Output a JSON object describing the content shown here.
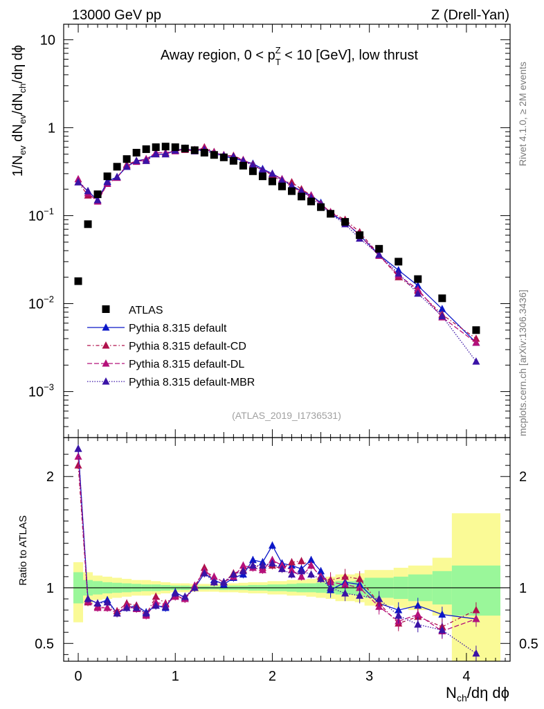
{
  "header": {
    "left": "13000 GeV pp",
    "right": "Z (Drell-Yan)"
  },
  "annotation": {
    "prefix": "Away region, 0 < p",
    "sup": "Z",
    "sub": "T",
    "suffix": " < 10 [GeV], low thrust"
  },
  "side_labels": {
    "rivet": "Rivet 4.1.0, ≥ 2M events",
    "mcplots": "mcplots.cern.ch [arXiv:1306.3436]"
  },
  "analysis_id": "(ATLAS_2019_I1736531)",
  "top_ylabel": {
    "p1": "1/N",
    "s1": "ev",
    "p2": " dN",
    "s2": "ev",
    "p3": "/dN",
    "s3": "ch",
    "p4": "/dη dϕ"
  },
  "bottom_ylabel": "Ratio to ATLAS",
  "xlabel": {
    "p1": "N",
    "s1": "ch",
    "p2": "/dη dϕ"
  },
  "colors": {
    "data": "#000000",
    "default": "#0b17c8",
    "cd": "#b0114c",
    "dl": "#b5107a",
    "mbr": "#3a13a6",
    "band_green": "#9af79a",
    "band_yellow": "#fafa96"
  },
  "chart_data": {
    "type": "scatter",
    "x": [
      0.0,
      0.1,
      0.2,
      0.3,
      0.4,
      0.5,
      0.6,
      0.7,
      0.8,
      0.9,
      1.0,
      1.1,
      1.2,
      1.3,
      1.4,
      1.5,
      1.6,
      1.7,
      1.8,
      1.9,
      2.0,
      2.1,
      2.2,
      2.3,
      2.4,
      2.5,
      2.6,
      2.75,
      2.9,
      3.1,
      3.3,
      3.5,
      3.75,
      4.1
    ],
    "xlim": [
      -0.15,
      4.45
    ],
    "xticks": [
      0,
      1,
      2,
      3,
      4
    ],
    "top": {
      "ylim": [
        0.0003,
        15
      ],
      "yscale": "log",
      "yticks": [
        {
          "v": 10,
          "base": "10",
          "exp": ""
        },
        {
          "v": 1,
          "base": "1",
          "exp": ""
        },
        {
          "v": 0.1,
          "base": "10",
          "exp": "−1"
        },
        {
          "v": 0.01,
          "base": "10",
          "exp": "−2"
        },
        {
          "v": 0.001,
          "base": "10",
          "exp": "−3"
        }
      ],
      "data": [
        0.018,
        0.08,
        0.175,
        0.28,
        0.36,
        0.44,
        0.52,
        0.57,
        0.6,
        0.61,
        0.6,
        0.58,
        0.555,
        0.52,
        0.49,
        0.46,
        0.42,
        0.37,
        0.32,
        0.28,
        0.245,
        0.215,
        0.19,
        0.165,
        0.145,
        0.125,
        0.105,
        0.085,
        0.06,
        0.042,
        0.03,
        0.019,
        0.0115,
        0.005
      ],
      "series": [
        {
          "name": "Pythia 8.315 default",
          "key": "default",
          "dash": "",
          "marker": "triangle",
          "values": [
            0.24,
            0.19,
            0.15,
            0.245,
            0.275,
            0.36,
            0.42,
            0.44,
            0.5,
            0.5,
            0.55,
            0.58,
            0.55,
            0.565,
            0.53,
            0.47,
            0.45,
            0.42,
            0.39,
            0.34,
            0.3,
            0.26,
            0.22,
            0.19,
            0.17,
            0.14,
            0.105,
            0.085,
            0.06,
            0.036,
            0.024,
            0.016,
            0.0087,
            0.0036
          ]
        },
        {
          "name": "Pythia 8.315 default-CD",
          "key": "cd",
          "dash": "5 3 1.5 3",
          "marker": "triangle",
          "values": [
            0.24,
            0.17,
            0.15,
            0.23,
            0.27,
            0.38,
            0.42,
            0.42,
            0.5,
            0.5,
            0.56,
            0.56,
            0.54,
            0.6,
            0.53,
            0.48,
            0.48,
            0.43,
            0.38,
            0.33,
            0.29,
            0.24,
            0.24,
            0.2,
            0.17,
            0.135,
            0.11,
            0.09,
            0.065,
            0.036,
            0.02,
            0.014,
            0.0075,
            0.004
          ]
        },
        {
          "name": "Pythia 8.315 default-DL",
          "key": "dl",
          "dash": "7 3",
          "marker": "triangle",
          "values": [
            0.26,
            0.18,
            0.145,
            0.23,
            0.27,
            0.37,
            0.41,
            0.44,
            0.52,
            0.52,
            0.54,
            0.57,
            0.56,
            0.58,
            0.52,
            0.49,
            0.46,
            0.43,
            0.37,
            0.33,
            0.3,
            0.26,
            0.22,
            0.18,
            0.17,
            0.135,
            0.11,
            0.085,
            0.06,
            0.035,
            0.021,
            0.0145,
            0.007,
            0.0036
          ]
        },
        {
          "name": "Pythia 8.315 default-MBR",
          "key": "mbr",
          "dash": "1.5 2",
          "marker": "triangle",
          "values": [
            0.24,
            0.19,
            0.15,
            0.24,
            0.275,
            0.36,
            0.42,
            0.42,
            0.5,
            0.5,
            0.55,
            0.58,
            0.54,
            0.56,
            0.5,
            0.48,
            0.47,
            0.42,
            0.37,
            0.33,
            0.3,
            0.25,
            0.22,
            0.19,
            0.16,
            0.13,
            0.105,
            0.08,
            0.055,
            0.036,
            0.022,
            0.013,
            0.0072,
            0.0022
          ]
        }
      ],
      "legend": {
        "data_label": "ATLAS",
        "position": "bottom-left"
      }
    },
    "ratio": {
      "ylim": [
        0.34,
        2.35
      ],
      "yticks": [
        0.5,
        1,
        2
      ],
      "band_edges": [
        -0.05,
        0.05,
        0.15,
        0.25,
        0.35,
        0.45,
        0.55,
        0.65,
        0.75,
        0.85,
        0.95,
        1.05,
        1.15,
        1.25,
        1.35,
        1.45,
        1.55,
        1.65,
        1.75,
        1.85,
        1.95,
        2.05,
        2.15,
        2.25,
        2.35,
        2.45,
        2.55,
        2.65,
        2.85,
        2.95,
        3.25,
        3.4,
        3.65,
        3.85,
        4.35
      ],
      "band_green": [
        [
          0.86,
          1.14
        ],
        [
          0.93,
          1.07
        ],
        [
          0.94,
          1.06
        ],
        [
          0.95,
          1.05
        ],
        [
          0.955,
          1.045
        ],
        [
          0.96,
          1.04
        ],
        [
          0.965,
          1.035
        ],
        [
          0.97,
          1.03
        ],
        [
          0.97,
          1.03
        ],
        [
          0.975,
          1.025
        ],
        [
          0.98,
          1.02
        ],
        [
          0.98,
          1.02
        ],
        [
          0.985,
          1.015
        ],
        [
          0.985,
          1.015
        ],
        [
          0.985,
          1.015
        ],
        [
          0.98,
          1.02
        ],
        [
          0.98,
          1.02
        ],
        [
          0.98,
          1.02
        ],
        [
          0.975,
          1.025
        ],
        [
          0.975,
          1.025
        ],
        [
          0.97,
          1.03
        ],
        [
          0.97,
          1.03
        ],
        [
          0.965,
          1.035
        ],
        [
          0.96,
          1.04
        ],
        [
          0.96,
          1.04
        ],
        [
          0.955,
          1.045
        ],
        [
          0.95,
          1.05
        ],
        [
          0.94,
          1.06
        ],
        [
          0.93,
          1.07
        ],
        [
          0.91,
          1.09
        ],
        [
          0.9,
          1.1
        ],
        [
          0.88,
          1.12
        ],
        [
          0.85,
          1.15
        ],
        [
          0.75,
          1.2
        ]
      ],
      "band_yellow": [
        [
          0.69,
          1.23
        ],
        [
          0.86,
          1.14
        ],
        [
          0.89,
          1.11
        ],
        [
          0.9,
          1.1
        ],
        [
          0.91,
          1.09
        ],
        [
          0.92,
          1.08
        ],
        [
          0.93,
          1.07
        ],
        [
          0.93,
          1.07
        ],
        [
          0.94,
          1.06
        ],
        [
          0.95,
          1.05
        ],
        [
          0.96,
          1.04
        ],
        [
          0.96,
          1.04
        ],
        [
          0.965,
          1.035
        ],
        [
          0.965,
          1.035
        ],
        [
          0.965,
          1.035
        ],
        [
          0.96,
          1.04
        ],
        [
          0.96,
          1.04
        ],
        [
          0.955,
          1.045
        ],
        [
          0.95,
          1.05
        ],
        [
          0.95,
          1.05
        ],
        [
          0.94,
          1.06
        ],
        [
          0.94,
          1.06
        ],
        [
          0.93,
          1.07
        ],
        [
          0.93,
          1.07
        ],
        [
          0.92,
          1.08
        ],
        [
          0.91,
          1.09
        ],
        [
          0.9,
          1.1
        ],
        [
          0.88,
          1.12
        ],
        [
          0.87,
          1.13
        ],
        [
          0.84,
          1.16
        ],
        [
          0.82,
          1.18
        ],
        [
          0.8,
          1.2
        ],
        [
          0.75,
          1.27
        ],
        [
          0.3,
          1.67
        ]
      ],
      "series": [
        {
          "key": "default",
          "values": [
            2.25,
            0.9,
            0.86,
            0.89,
            0.77,
            0.82,
            0.84,
            0.78,
            0.84,
            0.82,
            0.96,
            0.91,
            1.0,
            1.13,
            1.07,
            1.03,
            1.09,
            1.12,
            1.25,
            1.23,
            1.38,
            1.22,
            1.2,
            1.17,
            1.25,
            1.15,
            0.98,
            1.05,
            1.03,
            0.86,
            0.8,
            0.84,
            0.76,
            0.72
          ]
        },
        {
          "key": "cd",
          "values": [
            2.1,
            0.87,
            0.83,
            0.82,
            0.79,
            0.86,
            0.84,
            0.76,
            0.92,
            0.86,
            0.93,
            0.9,
            1.0,
            1.18,
            1.05,
            1.05,
            1.13,
            1.16,
            1.2,
            1.18,
            1.2,
            1.17,
            1.23,
            1.24,
            1.2,
            1.1,
            1.07,
            1.1,
            1.08,
            0.86,
            0.68,
            0.74,
            0.65,
            0.8
          ]
        },
        {
          "key": "dl",
          "values": [
            2.18,
            0.88,
            0.82,
            0.82,
            0.77,
            0.84,
            0.81,
            0.75,
            0.87,
            0.85,
            0.92,
            0.9,
            1.02,
            1.15,
            1.1,
            1.05,
            1.1,
            1.2,
            1.18,
            1.16,
            1.25,
            1.2,
            1.16,
            1.1,
            1.2,
            1.1,
            1.05,
            1.03,
            1.0,
            0.83,
            0.7,
            0.76,
            0.61,
            0.72
          ]
        },
        {
          "key": "mbr",
          "values": [
            2.25,
            0.9,
            0.86,
            0.87,
            0.77,
            0.82,
            0.82,
            0.77,
            0.84,
            0.83,
            0.95,
            0.92,
            1.0,
            1.13,
            1.05,
            1.05,
            1.12,
            1.15,
            1.2,
            1.2,
            1.22,
            1.17,
            1.12,
            1.15,
            1.12,
            1.08,
            1.0,
            0.95,
            0.93,
            0.9,
            0.75,
            0.67,
            0.62,
            0.41
          ]
        }
      ]
    }
  }
}
